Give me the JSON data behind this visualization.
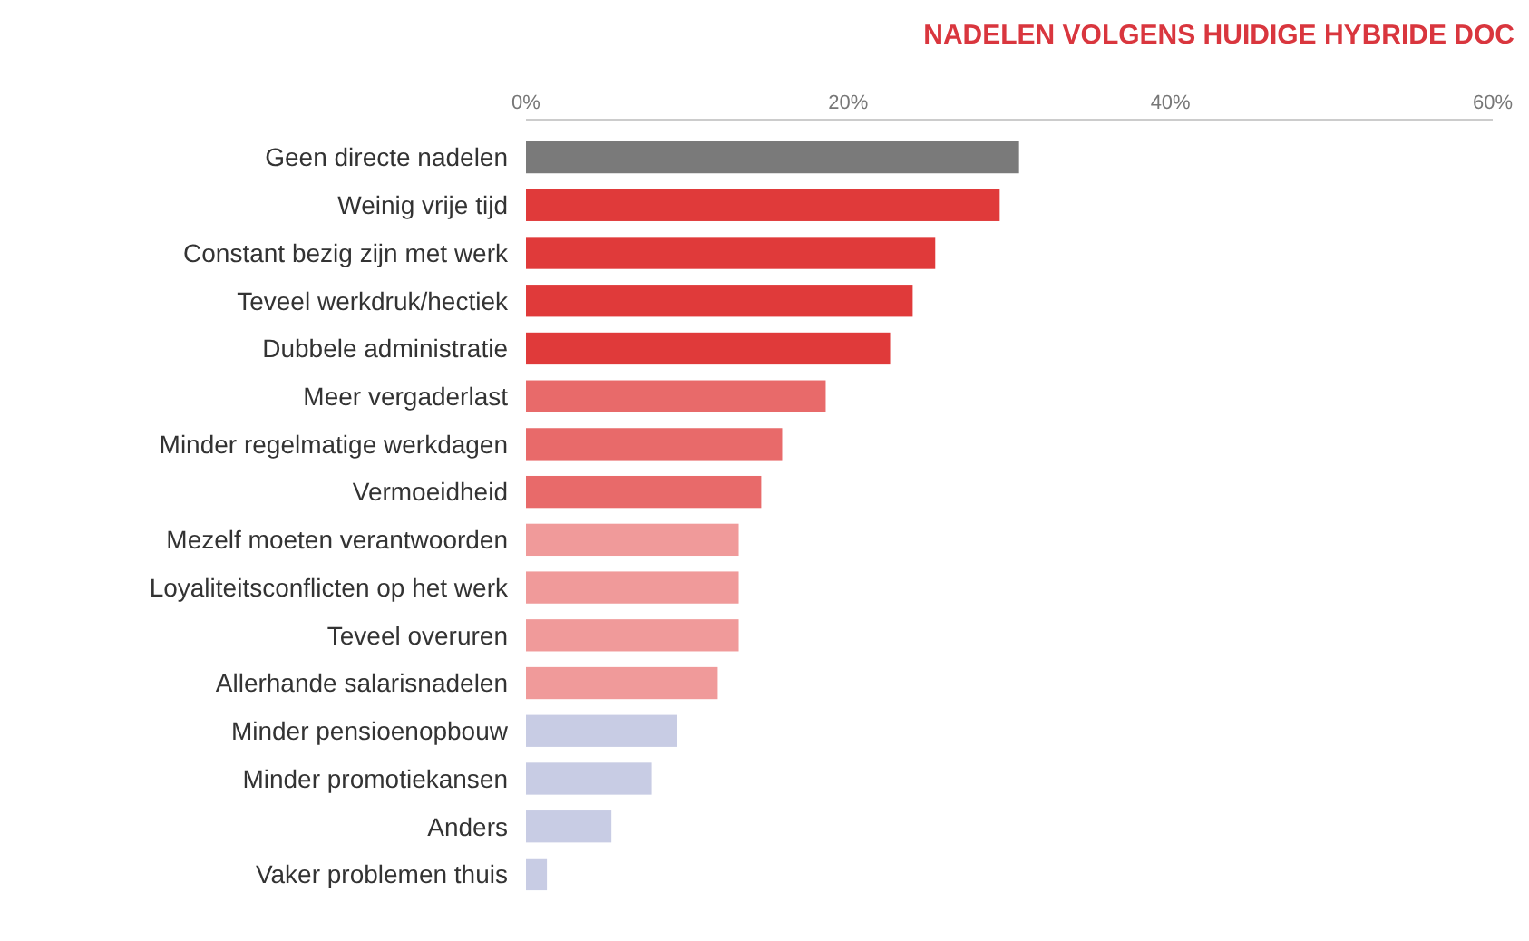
{
  "chart_data": {
    "type": "bar",
    "orientation": "horizontal",
    "title": "NADELEN VOLGENS HUIDIGE HYBRIDE DOC",
    "categories": [
      "Geen directe nadelen",
      "Weinig vrije tijd",
      "Constant bezig zijn met werk",
      "Teveel werkdruk/hectiek",
      "Dubbele administratie",
      "Meer vergaderlast",
      "Minder regelmatige werkdagen",
      "Vermoeidheid",
      "Mezelf moeten verantwoorden",
      "Loyaliteitsconflicten op het werk",
      "Teveel overuren",
      "Allerhande salarisnadelen",
      "Minder pensioenopbouw",
      "Minder promotiekansen",
      "Anders",
      "Vaker problemen thuis"
    ],
    "values": [
      30.6,
      29.4,
      25.4,
      24.0,
      22.6,
      18.6,
      15.9,
      14.6,
      13.2,
      13.2,
      13.2,
      11.9,
      9.4,
      7.8,
      5.3,
      1.3
    ],
    "colors": [
      "#7a7a7a",
      "#e03a3a",
      "#e03a3a",
      "#e03a3a",
      "#e03a3a",
      "#e86a6a",
      "#e86a6a",
      "#e86a6a",
      "#f09a9a",
      "#f09a9a",
      "#f09a9a",
      "#f09a9a",
      "#c8cce4",
      "#c8cce4",
      "#c8cce4",
      "#c8cce4"
    ],
    "xlim": [
      0,
      60
    ],
    "xticks": [
      {
        "value": 0,
        "label": "0%"
      },
      {
        "value": 20,
        "label": "20%"
      },
      {
        "value": 40,
        "label": "40%"
      },
      {
        "value": 60,
        "label": "60%"
      }
    ],
    "grid": false
  }
}
